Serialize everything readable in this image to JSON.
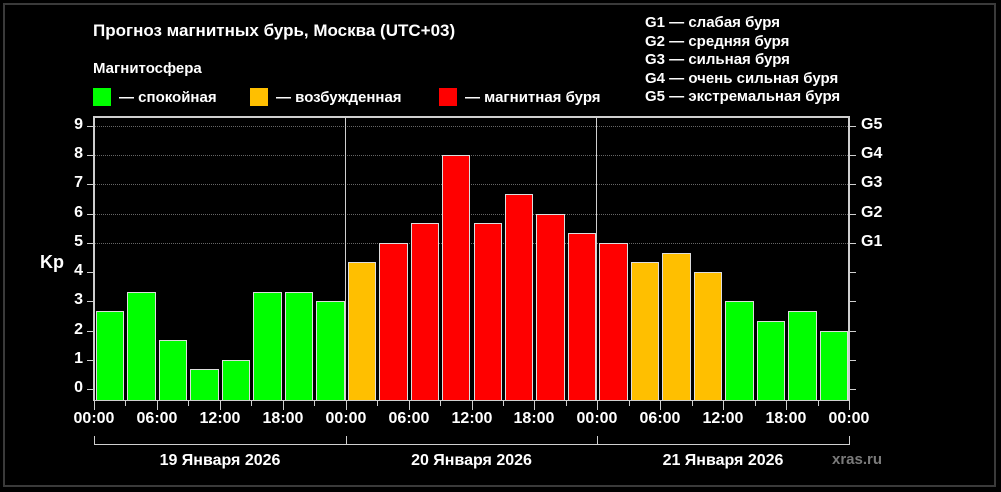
{
  "header": {
    "title": "Прогноз магнитных бурь, Москва (UTC+03)",
    "subtitle": "Магнитосфера"
  },
  "legend": [
    {
      "label": "— спокойная",
      "color": "#00ff00"
    },
    {
      "label": "— возбужденная",
      "color": "#ffbf00"
    },
    {
      "label": "— магнитная буря",
      "color": "#ff0000"
    }
  ],
  "g_legend": [
    "G1 — слабая буря",
    "G2 — средняя буря",
    "G3 — сильная буря",
    "G4 — очень сильная буря",
    "G5 — экстремальная буря"
  ],
  "watermark": "xras.ru",
  "colors": {
    "quiet": "#00ff00",
    "unsettled": "#ffbf00",
    "storm": "#ff0000",
    "background": "#000000"
  },
  "chart_data": {
    "type": "bar",
    "title": "Прогноз магнитных бурь, Москва (UTC+03)",
    "xlabel": "",
    "ylabel": "Kp",
    "ylim": [
      0,
      9
    ],
    "yticks": [
      "0",
      "1",
      "2",
      "3",
      "4",
      "5",
      "6",
      "7",
      "8",
      "9"
    ],
    "right_axis_labels": [
      {
        "kp": 5,
        "label": "G1"
      },
      {
        "kp": 6,
        "label": "G2"
      },
      {
        "kp": 7,
        "label": "G3"
      },
      {
        "kp": 8,
        "label": "G4"
      },
      {
        "kp": 9,
        "label": "G5"
      }
    ],
    "xtick_labels": [
      "00:00",
      "06:00",
      "12:00",
      "18:00",
      "00:00",
      "06:00",
      "12:00",
      "18:00",
      "00:00",
      "06:00",
      "12:00",
      "18:00",
      "00:00"
    ],
    "days": [
      "19 Января 2026",
      "20 Января 2026",
      "21 Января 2026"
    ],
    "grid": true,
    "categories": [
      "19 00-03",
      "19 03-06",
      "19 06-09",
      "19 09-12",
      "19 12-15",
      "19 15-18",
      "19 18-21",
      "19 21-24",
      "20 00-03",
      "20 03-06",
      "20 06-09",
      "20 09-12",
      "20 12-15",
      "20 15-18",
      "20 18-21",
      "20 21-24",
      "21 00-03",
      "21 03-06",
      "21 06-09",
      "21 09-12",
      "21 12-15",
      "21 15-18",
      "21 18-21",
      "21 21-24"
    ],
    "values": [
      2.67,
      3.33,
      1.67,
      0.67,
      1.0,
      3.33,
      3.33,
      3.0,
      4.33,
      5.0,
      5.67,
      8.0,
      5.67,
      6.67,
      6.0,
      5.33,
      5.0,
      4.33,
      4.67,
      4.0,
      3.0,
      2.33,
      2.67,
      2.0
    ],
    "status": [
      "quiet",
      "quiet",
      "quiet",
      "quiet",
      "quiet",
      "quiet",
      "quiet",
      "quiet",
      "unsettled",
      "storm",
      "storm",
      "storm",
      "storm",
      "storm",
      "storm",
      "storm",
      "storm",
      "unsettled",
      "unsettled",
      "unsettled",
      "quiet",
      "quiet",
      "quiet",
      "quiet"
    ]
  }
}
